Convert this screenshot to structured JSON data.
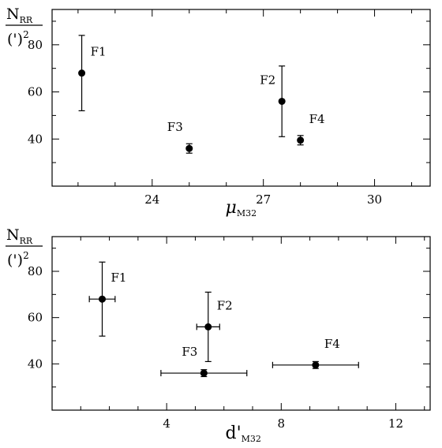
{
  "colors": {
    "axes": "#000000",
    "marker": "#000000",
    "background": "#ffffff"
  },
  "chart_data": [
    {
      "type": "scatter",
      "panel": "top",
      "ylabel_top": "N",
      "ylabel_top_sub": "RR",
      "ylabel_bottom": "(')",
      "ylabel_bottom_sup": "2",
      "xlabel": "μ",
      "xlabel_sub": "M32",
      "xlim": [
        21.3,
        31.5
      ],
      "ylim": [
        20,
        95
      ],
      "xticks": [
        24,
        27,
        30
      ],
      "xticks_minor_step": 1,
      "yticks": [
        40,
        60,
        80
      ],
      "yticks_minor_step": 10,
      "ticks_on_all_sides": true,
      "grid": false,
      "points": [
        {
          "label": "F1",
          "x": 22.1,
          "y": 68,
          "y_err": 16,
          "x_err": 0,
          "label_pos": "upper-right"
        },
        {
          "label": "F2",
          "x": 27.5,
          "y": 56,
          "y_err": 15,
          "x_err": 0,
          "label_pos": "upper-left"
        },
        {
          "label": "F3",
          "x": 25.0,
          "y": 36,
          "y_err": 2,
          "x_err": 0,
          "label_pos": "upper-left"
        },
        {
          "label": "F4",
          "x": 28.0,
          "y": 39.5,
          "y_err": 2,
          "x_err": 0,
          "label_pos": "upper-right"
        }
      ]
    },
    {
      "type": "scatter",
      "panel": "bottom",
      "ylabel_top": "N",
      "ylabel_top_sub": "RR",
      "ylabel_bottom": "(')",
      "ylabel_bottom_sup": "2",
      "xlabel": "d'",
      "xlabel_sub": "M32",
      "xlim": [
        0,
        13.2
      ],
      "ylim": [
        20,
        95
      ],
      "xticks": [
        4,
        8,
        12
      ],
      "xticks_minor_step": 1,
      "yticks": [
        40,
        60,
        80
      ],
      "yticks_minor_step": 10,
      "ticks_on_all_sides": true,
      "grid": false,
      "points": [
        {
          "label": "F1",
          "x": 1.75,
          "y": 68,
          "y_err": 16,
          "x_err": 0.45,
          "label_pos": "upper-right"
        },
        {
          "label": "F2",
          "x": 5.45,
          "y": 56,
          "y_err": 15,
          "x_err": 0.4,
          "label_pos": "upper-right"
        },
        {
          "label": "F3",
          "x": 5.3,
          "y": 36,
          "y_err": 1.5,
          "x_err": 1.5,
          "label_pos": "upper-left"
        },
        {
          "label": "F4",
          "x": 9.2,
          "y": 39.5,
          "y_err": 1.5,
          "x_err": 1.5,
          "label_pos": "upper-right"
        }
      ]
    }
  ]
}
